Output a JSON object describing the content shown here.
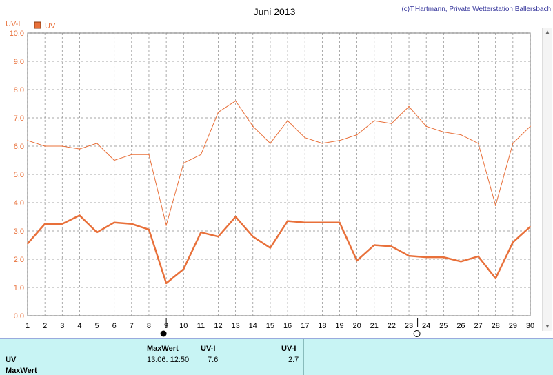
{
  "chart_data": {
    "type": "line",
    "title": "Juni 2013",
    "copyright": "(c)T.Hartmann, Private Wetterstation Ballersbach",
    "ylabel": "UV-I",
    "legend": "UV",
    "legend_color": "#e8703a",
    "ylim": [
      0,
      10
    ],
    "yticks": [
      "0.0",
      "1.0",
      "2.0",
      "3.0",
      "4.0",
      "5.0",
      "6.0",
      "7.0",
      "8.0",
      "9.0",
      "10.0"
    ],
    "x": [
      1,
      2,
      3,
      4,
      5,
      6,
      7,
      8,
      9,
      10,
      11,
      12,
      13,
      14,
      15,
      16,
      17,
      18,
      19,
      20,
      21,
      22,
      23,
      24,
      25,
      26,
      27,
      28,
      29,
      30
    ],
    "xticks": [
      "1",
      "2",
      "3",
      "4",
      "5",
      "6",
      "7",
      "8",
      "9",
      "10",
      "11",
      "12",
      "13",
      "14",
      "15",
      "16",
      "17",
      "18",
      "19",
      "20",
      "21",
      "22",
      "23",
      "24",
      "25",
      "26",
      "27",
      "28",
      "29",
      "30"
    ],
    "grid": true,
    "series": [
      {
        "role": "max",
        "width": 1,
        "values": [
          6.2,
          6.0,
          6.0,
          5.9,
          6.1,
          5.5,
          5.7,
          5.7,
          3.2,
          5.4,
          5.7,
          7.2,
          7.6,
          6.7,
          6.1,
          6.9,
          6.3,
          6.1,
          6.2,
          6.4,
          6.9,
          6.8,
          7.4,
          6.7,
          6.5,
          6.4,
          6.1,
          3.9,
          6.1,
          6.7
        ]
      },
      {
        "role": "mean",
        "width": 2.5,
        "values": [
          2.55,
          3.25,
          3.25,
          3.55,
          2.95,
          3.3,
          3.25,
          3.05,
          1.15,
          1.65,
          2.95,
          2.8,
          3.5,
          2.8,
          2.4,
          3.35,
          3.3,
          3.3,
          3.3,
          1.95,
          2.5,
          2.45,
          2.12,
          2.07,
          2.07,
          1.92,
          2.1,
          1.32,
          2.6,
          3.15
        ]
      }
    ],
    "markers": [
      {
        "x": 9,
        "symbol": "full-moon",
        "glyph": "●"
      },
      {
        "x": 23.5,
        "symbol": "new-moon",
        "glyph": "○"
      }
    ]
  },
  "table": {
    "rows": [
      "UV",
      "MaxWert"
    ],
    "max_header": "MaxWert",
    "unit_header": "UV-I",
    "max_date": "13.06.  12:50",
    "max_value": "7.6",
    "mean_header": "UV-I",
    "mean_value": "2.7"
  }
}
